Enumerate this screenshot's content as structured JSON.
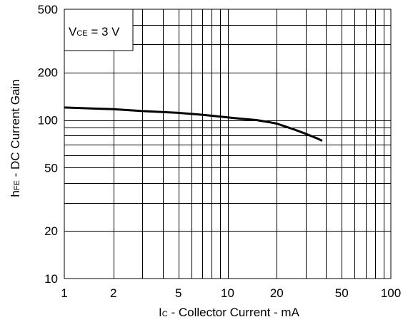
{
  "chart_data": {
    "type": "line",
    "x_scale": "log",
    "y_scale": "log",
    "xlim": [
      1,
      100
    ],
    "ylim": [
      10,
      500
    ],
    "grid": true,
    "xlabel": {
      "main": "I",
      "sub": "C",
      "rest": " - Collector Current - mA"
    },
    "ylabel": {
      "main": "h",
      "sub": "FE",
      "rest": " - DC Current Gain"
    },
    "annotation": {
      "main": "V",
      "sub": "CE",
      "rest": " = 3 V"
    },
    "x_ticks": [
      {
        "value": 1,
        "label": "1"
      },
      {
        "value": 2,
        "label": "2"
      },
      {
        "value": 5,
        "label": "5"
      },
      {
        "value": 10,
        "label": "10"
      },
      {
        "value": 20,
        "label": "20"
      },
      {
        "value": 50,
        "label": "50"
      },
      {
        "value": 100,
        "label": "100"
      }
    ],
    "y_ticks": [
      {
        "value": 10,
        "label": "10"
      },
      {
        "value": 20,
        "label": "20"
      },
      {
        "value": 50,
        "label": "50"
      },
      {
        "value": 100,
        "label": "100"
      },
      {
        "value": 200,
        "label": "200"
      },
      {
        "value": 500,
        "label": "500"
      }
    ],
    "series": [
      {
        "x": [
          1,
          2,
          3,
          5,
          7,
          10,
          12,
          15,
          18,
          20,
          25,
          30,
          35,
          38
        ],
        "y": [
          120,
          117,
          114,
          111,
          108,
          104,
          102,
          100,
          97,
          95,
          88,
          82,
          77,
          74
        ]
      }
    ]
  }
}
